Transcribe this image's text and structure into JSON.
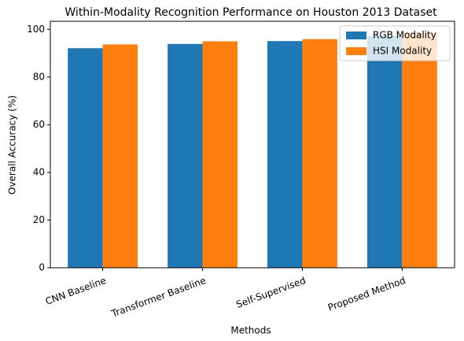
{
  "chart_data": {
    "type": "bar",
    "title": "Within-Modality Recognition Performance on Houston 2013 Dataset",
    "x_label": "Methods",
    "y_label": "Overall Accuracy (%)",
    "categories": [
      "CNN Baseline",
      "Transformer Baseline",
      "Self-Supervised",
      "Proposed Method"
    ],
    "series": [
      {
        "name": "RGB Modality",
        "color": "#1f77b4",
        "values": [
          92.1,
          93.9,
          95.1,
          97.2
        ]
      },
      {
        "name": "HSI Modality",
        "color": "#ff7f0e",
        "values": [
          93.7,
          95.0,
          95.9,
          98.5
        ]
      }
    ],
    "ylim": [
      0,
      103.4
    ],
    "yticks": [
      0,
      20,
      40,
      60,
      80,
      100
    ],
    "legend": "upper right"
  }
}
